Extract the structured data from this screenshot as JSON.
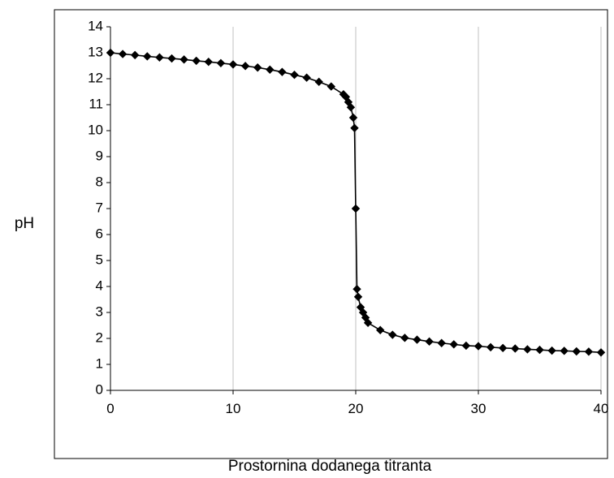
{
  "chart_data": {
    "type": "scatter",
    "title": "",
    "xlabel": "Prostornina dodanega titranta",
    "ylabel": "pH",
    "xlim": [
      0,
      40
    ],
    "ylim": [
      0,
      14
    ],
    "x_ticks": [
      "0",
      "10",
      "20",
      "30",
      "40"
    ],
    "y_ticks": [
      "0",
      "1",
      "2",
      "3",
      "4",
      "5",
      "6",
      "7",
      "8",
      "9",
      "10",
      "11",
      "12",
      "13",
      "14"
    ],
    "grid": "vertical",
    "legend": "none",
    "marker": "diamond",
    "connected": true,
    "colors": {
      "series": "#000000",
      "grid": "#c0c0c0",
      "frame": "#000000",
      "background": "#ffffff"
    },
    "series": [
      {
        "x": [
          0,
          1,
          2,
          3,
          4,
          5,
          6,
          7,
          8,
          9,
          10,
          11,
          12,
          13,
          14,
          15,
          16,
          17,
          18,
          19,
          19.2,
          19.4,
          19.6,
          19.8,
          19.9,
          20,
          20.1,
          20.2,
          20.4,
          20.6,
          20.8,
          21,
          22,
          23,
          24,
          25,
          26,
          27,
          28,
          29,
          30,
          31,
          32,
          33,
          34,
          35,
          36,
          37,
          38,
          39,
          40
        ],
        "y": [
          13,
          12.95,
          12.91,
          12.86,
          12.82,
          12.78,
          12.74,
          12.69,
          12.65,
          12.6,
          12.55,
          12.49,
          12.43,
          12.35,
          12.26,
          12.15,
          12.04,
          11.88,
          11.7,
          11.4,
          11.3,
          11.1,
          10.9,
          10.5,
          10.1,
          7.0,
          3.9,
          3.6,
          3.2,
          3.0,
          2.8,
          2.6,
          2.32,
          2.14,
          2.02,
          1.95,
          1.88,
          1.82,
          1.77,
          1.72,
          1.7,
          1.66,
          1.63,
          1.61,
          1.58,
          1.56,
          1.53,
          1.52,
          1.5,
          1.49,
          1.46
        ]
      }
    ]
  }
}
